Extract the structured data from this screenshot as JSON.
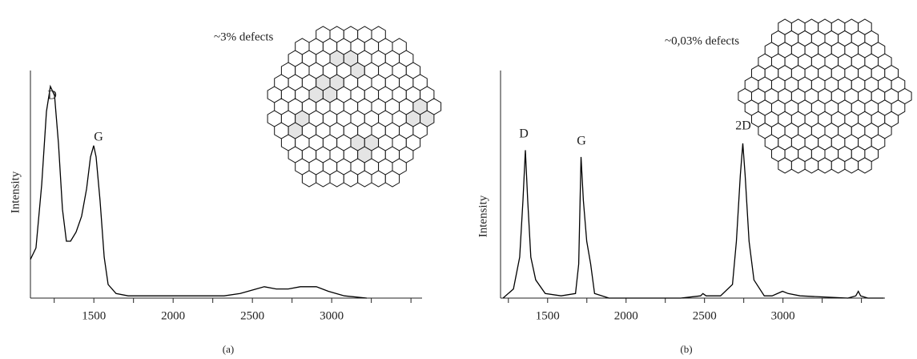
{
  "chart_data": [
    {
      "type": "line",
      "caption": "(a)",
      "ylabel": "Intensity",
      "annotation": "~3% defects",
      "peak_labels": [
        "D",
        "G"
      ],
      "xlim": [
        1100,
        3570
      ],
      "ylim": [
        0,
        100
      ],
      "xticks": [
        1500,
        2000,
        2500,
        3000
      ],
      "xminor_ticks": [
        1250,
        1750,
        2250,
        2750,
        3250,
        3500
      ],
      "color": "#000000",
      "x": [
        1100,
        1135,
        1171,
        1201,
        1226,
        1252,
        1277,
        1302,
        1327,
        1353,
        1388,
        1423,
        1454,
        1479,
        1499,
        1514,
        1539,
        1565,
        1590,
        1640,
        1716,
        1918,
        2120,
        2322,
        2423,
        2524,
        2575,
        2650,
        2726,
        2802,
        2903,
        2979,
        3080,
        3221
      ],
      "values": [
        17,
        22,
        50,
        82,
        93,
        89,
        68,
        39,
        25,
        25,
        29,
        36,
        48,
        62,
        67,
        62,
        43,
        18,
        6,
        2,
        1,
        1,
        1,
        1,
        2,
        4,
        5,
        4,
        4,
        5,
        5,
        3,
        1,
        0
      ]
    },
    {
      "type": "line",
      "caption": "(b)",
      "ylabel": "Intensity",
      "annotation": "~0,03% defects",
      "peak_labels": [
        "D",
        "G",
        "2D"
      ],
      "xlim": [
        1200,
        3650
      ],
      "ylim": [
        0,
        100
      ],
      "xticks": [
        1500,
        2000,
        2500,
        3000
      ],
      "xminor_ticks": [
        1250,
        1750,
        2250,
        2750,
        3250,
        3500
      ],
      "color": "#000000",
      "x": [
        1216,
        1282,
        1322,
        1343,
        1358,
        1373,
        1393,
        1424,
        1485,
        1586,
        1678,
        1698,
        1713,
        1728,
        1749,
        1774,
        1799,
        1891,
        2348,
        2475,
        2490,
        2510,
        2602,
        2678,
        2703,
        2728,
        2744,
        2759,
        2784,
        2815,
        2881,
        2931,
        2997,
        3033,
        3109,
        3414,
        3464,
        3480,
        3495,
        3541,
        3642
      ],
      "values": [
        0,
        4,
        18,
        43,
        65,
        43,
        18,
        8,
        2,
        1,
        2,
        15,
        62,
        43,
        25,
        15,
        2,
        0,
        0,
        1,
        2,
        1,
        1,
        6,
        25,
        54,
        68,
        54,
        25,
        8,
        1,
        1,
        3,
        2,
        1,
        0,
        1,
        3,
        1,
        0,
        0
      ]
    }
  ]
}
